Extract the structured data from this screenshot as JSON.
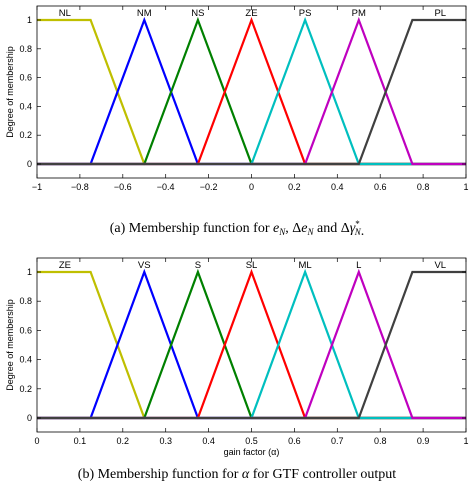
{
  "chart_data": [
    {
      "type": "line",
      "caption": "(a)  Membership function for e_N, Δe_N and Δγ*_N.",
      "ylabel": "Degree of membership",
      "xlabel": "",
      "xlim": [
        -1,
        1
      ],
      "ylim": [
        0,
        1
      ],
      "xticks": [
        "−1",
        "−0.8",
        "−0.6",
        "−0.4",
        "−0.2",
        "0",
        "0.2",
        "0.4",
        "0.6",
        "0.8",
        "1"
      ],
      "xtick_values": [
        -1,
        -0.8,
        -0.6,
        -0.4,
        -0.2,
        0,
        0.2,
        0.4,
        0.6,
        0.8,
        1
      ],
      "yticks": [
        "0",
        "0.2",
        "0.4",
        "0.6",
        "0.8",
        "1"
      ],
      "ytick_values": [
        0,
        0.2,
        0.4,
        0.6,
        0.8,
        1
      ],
      "series": [
        {
          "name": "NL",
          "color": "#bfbf00",
          "x": [
            -1,
            -0.75,
            -0.5,
            1
          ],
          "y": [
            1,
            1,
            0,
            0
          ],
          "label_x": -0.87
        },
        {
          "name": "NM",
          "color": "#0000ff",
          "x": [
            -1,
            -0.75,
            -0.5,
            -0.25,
            1
          ],
          "y": [
            0,
            0,
            1,
            0,
            0
          ],
          "label_x": -0.5
        },
        {
          "name": "NS",
          "color": "#008000",
          "x": [
            -1,
            -0.5,
            -0.25,
            0,
            1
          ],
          "y": [
            0,
            0,
            1,
            0,
            0
          ],
          "label_x": -0.25
        },
        {
          "name": "ZE",
          "color": "#ff0000",
          "x": [
            -1,
            -0.25,
            0,
            0.25,
            1
          ],
          "y": [
            0,
            0,
            1,
            0,
            0
          ],
          "label_x": 0
        },
        {
          "name": "PS",
          "color": "#00bfbf",
          "x": [
            -1,
            0,
            0.25,
            0.5,
            1
          ],
          "y": [
            0,
            0,
            1,
            0,
            0
          ],
          "label_x": 0.25
        },
        {
          "name": "PM",
          "color": "#bf00bf",
          "x": [
            -1,
            0.25,
            0.5,
            0.75,
            1
          ],
          "y": [
            0,
            0,
            1,
            0,
            0
          ],
          "label_x": 0.5
        },
        {
          "name": "PL",
          "color": "#404040",
          "x": [
            -1,
            0.5,
            0.75,
            1
          ],
          "y": [
            0,
            0,
            1,
            1
          ],
          "label_x": 0.88
        }
      ]
    },
    {
      "type": "line",
      "caption": "(b)  Membership function for α for GTF controller output",
      "ylabel": "Degree of membership",
      "xlabel": "gain factor (α)",
      "xlim": [
        0,
        1
      ],
      "ylim": [
        0,
        1
      ],
      "xticks": [
        "0",
        "0.1",
        "0.2",
        "0.3",
        "0.4",
        "0.5",
        "0.6",
        "0.7",
        "0.8",
        "0.9",
        "1"
      ],
      "xtick_values": [
        0,
        0.1,
        0.2,
        0.3,
        0.4,
        0.5,
        0.6,
        0.7,
        0.8,
        0.9,
        1
      ],
      "yticks": [
        "0",
        "0.2",
        "0.4",
        "0.6",
        "0.8",
        "1"
      ],
      "ytick_values": [
        0,
        0.2,
        0.4,
        0.6,
        0.8,
        1
      ],
      "series": [
        {
          "name": "ZE",
          "color": "#bfbf00",
          "x": [
            0,
            0.125,
            0.25,
            1
          ],
          "y": [
            1,
            1,
            0,
            0
          ],
          "label_x": 0.065
        },
        {
          "name": "VS",
          "color": "#0000ff",
          "x": [
            0,
            0.125,
            0.25,
            0.375,
            1
          ],
          "y": [
            0,
            0,
            1,
            0,
            0
          ],
          "label_x": 0.25
        },
        {
          "name": "S",
          "color": "#008000",
          "x": [
            0,
            0.25,
            0.375,
            0.5,
            1
          ],
          "y": [
            0,
            0,
            1,
            0,
            0
          ],
          "label_x": 0.375
        },
        {
          "name": "SL",
          "color": "#ff0000",
          "x": [
            0,
            0.375,
            0.5,
            0.625,
            1
          ],
          "y": [
            0,
            0,
            1,
            0,
            0
          ],
          "label_x": 0.5
        },
        {
          "name": "ML",
          "color": "#00bfbf",
          "x": [
            0,
            0.5,
            0.625,
            0.75,
            1
          ],
          "y": [
            0,
            0,
            1,
            0,
            0
          ],
          "label_x": 0.625
        },
        {
          "name": "L",
          "color": "#bf00bf",
          "x": [
            0,
            0.625,
            0.75,
            0.875,
            1
          ],
          "y": [
            0,
            0,
            1,
            0,
            0
          ],
          "label_x": 0.75
        },
        {
          "name": "VL",
          "color": "#404040",
          "x": [
            0,
            0.75,
            0.875,
            1
          ],
          "y": [
            0,
            0,
            1,
            1
          ],
          "label_x": 0.94
        }
      ]
    }
  ]
}
